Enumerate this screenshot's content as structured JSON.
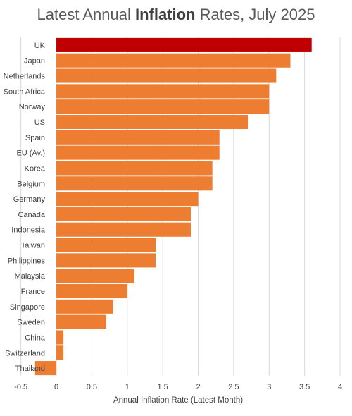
{
  "title": {
    "prefix": "Latest Annual ",
    "bold": "Inflation",
    "suffix": " Rates, July 2025"
  },
  "chart_data": {
    "type": "bar",
    "orientation": "horizontal",
    "title": "Latest Annual Inflation Rates, July 2025",
    "xlabel": "Annual Inflation Rate (Latest Month)",
    "ylabel": "",
    "xlim": [
      -0.5,
      4
    ],
    "xticks": [
      -0.5,
      0,
      0.5,
      1,
      1.5,
      2,
      2.5,
      3,
      3.5,
      4
    ],
    "xtick_labels": [
      "-0.5",
      "0",
      "0.5",
      "1",
      "1.5",
      "2",
      "2.5",
      "3",
      "3.5",
      "4"
    ],
    "grid": true,
    "categories": [
      "UK",
      "Japan",
      "Netherlands",
      "South Africa",
      "Norway",
      "US",
      "Spain",
      "EU (Av.)",
      "Korea",
      "Belgium",
      "Germany",
      "Canada",
      "Indonesia",
      "Taiwan",
      "Philippines",
      "Malaysia",
      "France",
      "Singapore",
      "Sweden",
      "China",
      "Switzerland",
      "Thailand"
    ],
    "values": [
      3.6,
      3.3,
      3.1,
      3.0,
      3.0,
      2.7,
      2.3,
      2.3,
      2.2,
      2.2,
      2.0,
      1.9,
      1.9,
      1.4,
      1.4,
      1.1,
      1.0,
      0.8,
      0.7,
      0.1,
      0.1,
      -0.3
    ],
    "highlight_category": "UK",
    "colors": {
      "bar": "#ED7D31",
      "highlight": "#C00000",
      "grid": "#D9D9D9"
    }
  }
}
